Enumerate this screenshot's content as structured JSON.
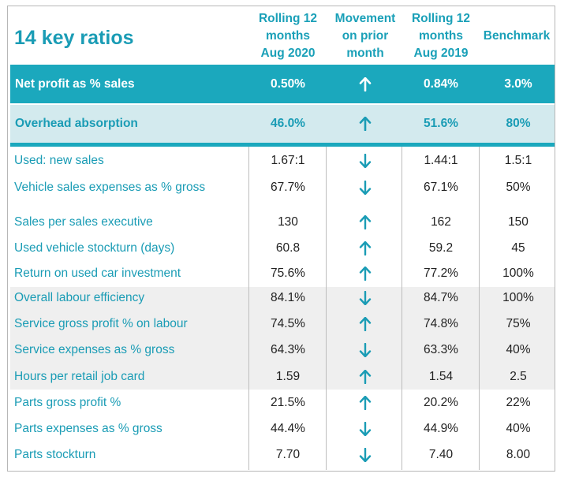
{
  "title": "14 key ratios",
  "columns": {
    "col1": [
      "Rolling 12",
      "months",
      "Aug 2020"
    ],
    "col2": [
      "Movement",
      "on prior",
      "month"
    ],
    "col3": [
      "Rolling 12",
      "months",
      "Aug 2019"
    ],
    "col4": "Benchmark"
  },
  "highlight_rows": [
    {
      "label": "Net profit as % sales",
      "current": "0.50%",
      "movement": "up",
      "previous": "0.84%",
      "benchmark": "3.0%"
    },
    {
      "label": "Overhead absorption",
      "current": "46.0%",
      "movement": "up",
      "previous": "51.6%",
      "benchmark": "80%"
    }
  ],
  "rows": [
    {
      "label": "Used: new sales",
      "current": "1.67:1",
      "movement": "down",
      "previous": "1.44:1",
      "benchmark": "1.5:1"
    },
    {
      "label": "Vehicle sales expenses as % gross",
      "current": "67.7%",
      "movement": "down",
      "previous": "67.1%",
      "benchmark": "50%"
    },
    {
      "label": "Sales per sales executive",
      "current": "130",
      "movement": "up",
      "previous": "162",
      "benchmark": "150"
    },
    {
      "label": "Used vehicle stockturn (days)",
      "current": "60.8",
      "movement": "up",
      "previous": "59.2",
      "benchmark": "45"
    },
    {
      "label": "Return on used car investment",
      "current": "75.6%",
      "movement": "up",
      "previous": "77.2%",
      "benchmark": "100%"
    },
    {
      "label": "Overall labour efficiency",
      "current": "84.1%",
      "movement": "down",
      "previous": "84.7%",
      "benchmark": "100%"
    },
    {
      "label": "Service gross profit % on labour",
      "current": "74.5%",
      "movement": "up",
      "previous": "74.8%",
      "benchmark": "75%"
    },
    {
      "label": "Service expenses as % gross",
      "current": "64.3%",
      "movement": "down",
      "previous": "63.3%",
      "benchmark": "40%"
    },
    {
      "label": "Hours per retail job card",
      "current": "1.59",
      "movement": "up",
      "previous": "1.54",
      "benchmark": "2.5"
    },
    {
      "label": "Parts gross profit %",
      "current": "21.5%",
      "movement": "up",
      "previous": "20.2%",
      "benchmark": "22%"
    },
    {
      "label": "Parts expenses as % gross",
      "current": "44.4%",
      "movement": "down",
      "previous": "44.9%",
      "benchmark": "40%"
    },
    {
      "label": "Parts stockturn",
      "current": "7.70",
      "movement": "down",
      "previous": "7.40",
      "benchmark": "8.00"
    }
  ],
  "colors": {
    "accent": "#1ba8bd",
    "accent_text": "#1a9cb5",
    "light_band": "#d3eaee",
    "shade": "#efefef"
  }
}
